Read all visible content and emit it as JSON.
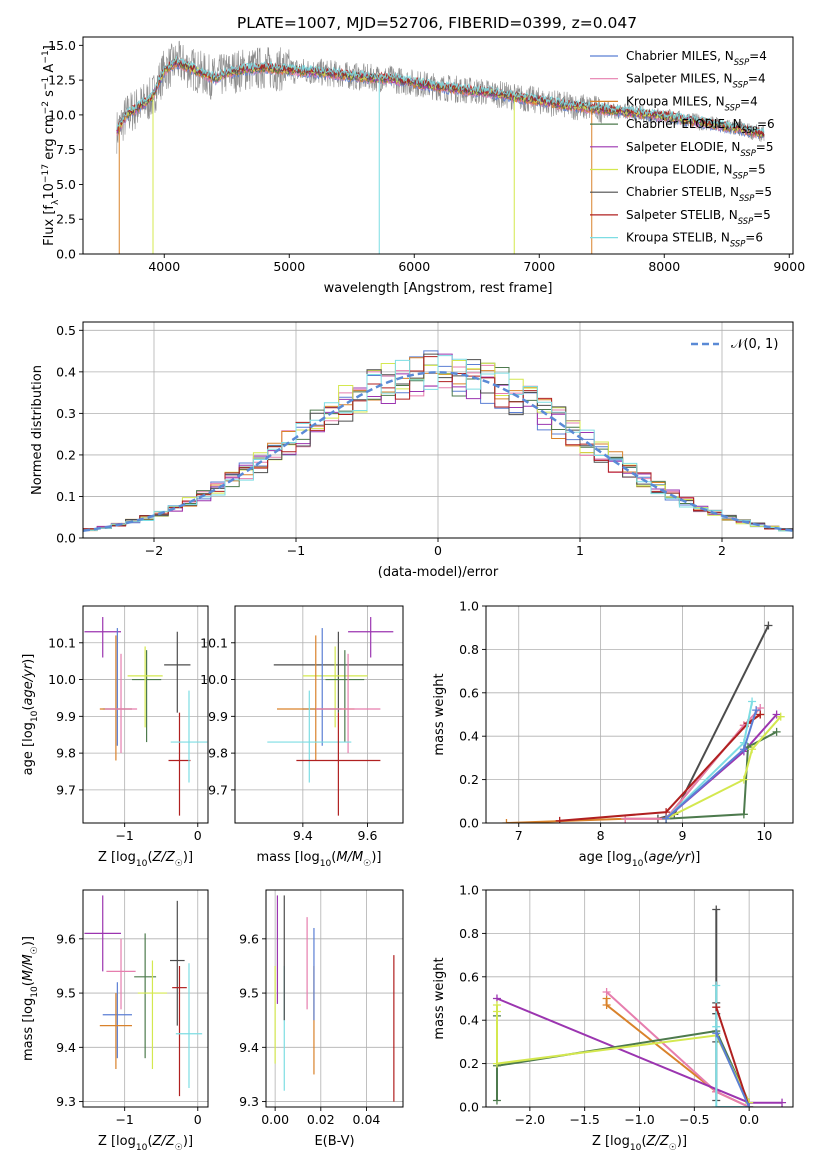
{
  "figure": {
    "title": "PLATE=1007, MJD=52706, FIBERID=0399, z=0.047"
  },
  "chart_data": [
    {
      "id": "spectrum",
      "type": "line",
      "title": "PLATE=1007, MJD=52706, FIBERID=0399, z=0.047",
      "xlabel": "wavelength [Angstrom, rest frame]",
      "ylabel": "Flux [f_λ 10^-17 erg cm^-2 s^-1 A^-1]",
      "xlim": [
        3350,
        9030
      ],
      "ylim": [
        0,
        15.6
      ],
      "xticks": [
        4000,
        5000,
        6000,
        7000,
        8000,
        9000
      ],
      "yticks": [
        0.0,
        2.5,
        5.0,
        7.5,
        10.0,
        12.5,
        15.0
      ],
      "grid": false,
      "legend_position": "top-right",
      "data": {
        "x": [
          3620,
          3700,
          3800,
          3900,
          4000,
          4100,
          4200,
          4300,
          4400,
          4500,
          4600,
          4700,
          4800,
          4900,
          5000,
          5200,
          5400,
          5600,
          5800,
          6000,
          6200,
          6400,
          6600,
          6800,
          7000,
          7200,
          7400,
          7600,
          7800,
          8000,
          8200,
          8400,
          8600,
          8800
        ],
        "y": [
          8.8,
          10.0,
          10.6,
          11.2,
          13.2,
          13.8,
          13.4,
          13.0,
          12.6,
          13.0,
          13.2,
          13.3,
          13.4,
          13.3,
          13.2,
          13.1,
          12.9,
          12.7,
          12.6,
          12.3,
          12.0,
          11.8,
          11.6,
          11.3,
          11.0,
          10.7,
          10.5,
          10.3,
          10.1,
          9.9,
          9.6,
          9.3,
          9.0,
          8.6
        ]
      },
      "series": [
        {
          "name": "Chabrier MILES, N_SSP=4",
          "color": "#5b7fd4"
        },
        {
          "name": "Salpeter MILES, N_SSP=4",
          "color": "#e67eae"
        },
        {
          "name": "Kroupa MILES, N_SSP=4",
          "color": "#d9822b"
        },
        {
          "name": "Chabrier ELODIE, N_SSP=6",
          "color": "#4d7a4d"
        },
        {
          "name": "Salpeter ELODIE, N_SSP=5",
          "color": "#9b35b0"
        },
        {
          "name": "Kroupa ELODIE, N_SSP=5",
          "color": "#d4e84f"
        },
        {
          "name": "Chabrier STELIB, N_SSP=5",
          "color": "#4d4d4d"
        },
        {
          "name": "Salpeter STELIB, N_SSP=5",
          "color": "#b02020"
        },
        {
          "name": "Kroupa STELIB, N_SSP=6",
          "color": "#7ddde3"
        }
      ],
      "data_color": "#8c8c8c"
    },
    {
      "id": "residuals",
      "type": "histogram",
      "xlabel": "(data-model)/error",
      "ylabel": "Normed distribution",
      "xlim": [
        -2.5,
        2.5
      ],
      "ylim": [
        0,
        0.52
      ],
      "xticks": [
        -2,
        -1,
        0,
        1,
        2
      ],
      "yticks": [
        0.0,
        0.1,
        0.2,
        0.3,
        0.4,
        0.5
      ],
      "grid": true,
      "legend_position": "top-right",
      "bin_width": 0.1,
      "bin_start": -2.5,
      "legend_label": "𝒩(0, 1)",
      "gaussian": {
        "mean": 0,
        "sigma": 1,
        "color": "#5a8ad6"
      }
    },
    {
      "id": "age-vs-Z",
      "type": "scatter",
      "xlabel": "Z [log10(Z/Z☉)]",
      "ylabel": "age  [log10(age/yr)]",
      "xlim": [
        -1.57,
        0.14
      ],
      "ylim": [
        9.61,
        10.2
      ],
      "xticks": [
        -1,
        0
      ],
      "yticks": [
        9.7,
        9.8,
        9.9,
        10.0,
        10.1
      ],
      "grid": true,
      "points": [
        {
          "series": "Salpeter ELODIE",
          "x": -1.3,
          "y": 10.13,
          "xerr": 0.25,
          "yerr": [
            0.07,
            0.04
          ],
          "color": "#9b35b0"
        },
        {
          "series": "Chabrier MILES",
          "x": -1.1,
          "y": 9.92,
          "xerr": 0.2,
          "yerr": [
            0.1,
            0.22
          ],
          "color": "#5b7fd4"
        },
        {
          "series": "Kroupa MILES",
          "x": -1.12,
          "y": 9.92,
          "xerr": 0.22,
          "yerr": [
            0.14,
            0.2
          ],
          "color": "#d9822b"
        },
        {
          "series": "Salpeter MILES",
          "x": -1.05,
          "y": 9.92,
          "xerr": 0.22,
          "yerr": [
            0.12,
            0.15
          ],
          "color": "#e67eae"
        },
        {
          "series": "Chabrier ELODIE",
          "x": -0.7,
          "y": 10.0,
          "xerr": 0.2,
          "yerr": [
            0.17,
            0.08
          ],
          "color": "#4d7a4d"
        },
        {
          "series": "Kroupa ELODIE",
          "x": -0.72,
          "y": 10.01,
          "xerr": 0.24,
          "yerr": [
            0.14,
            0.08
          ],
          "color": "#d4e84f"
        },
        {
          "series": "Chabrier STELIB",
          "x": -0.28,
          "y": 10.04,
          "xerr": 0.18,
          "yerr": [
            0.13,
            0.09
          ],
          "color": "#4d4d4d"
        },
        {
          "series": "Salpeter STELIB",
          "x": -0.25,
          "y": 9.78,
          "xerr": 0.15,
          "yerr": [
            0.15,
            0.13
          ],
          "color": "#b02020"
        },
        {
          "series": "Kroupa STELIB",
          "x": -0.12,
          "y": 9.83,
          "xerr": 0.25,
          "yerr": [
            0.11,
            0.14
          ],
          "color": "#7ddde3"
        }
      ]
    },
    {
      "id": "age-vs-mass",
      "type": "scatter",
      "xlabel": "mass [log10(M/M☉)]",
      "ylabel": "",
      "xlim": [
        9.19,
        9.71
      ],
      "ylim": [
        9.61,
        10.2
      ],
      "xticks": [
        9.4,
        9.6
      ],
      "yticks": [
        9.7,
        9.8,
        9.9,
        10.0,
        10.1
      ],
      "grid": true,
      "points": [
        {
          "series": "Salpeter ELODIE",
          "x": 9.61,
          "y": 10.13,
          "xerr": 0.07,
          "yerr": [
            0.07,
            0.04
          ],
          "color": "#9b35b0"
        },
        {
          "series": "Chabrier STELIB",
          "x": 9.51,
          "y": 10.04,
          "xerr": 0.2,
          "yerr": [
            0.13,
            0.09
          ],
          "color": "#4d4d4d"
        },
        {
          "series": "Kroupa ELODIE",
          "x": 9.5,
          "y": 10.01,
          "xerr": 0.1,
          "yerr": [
            0.14,
            0.08
          ],
          "color": "#d4e84f"
        },
        {
          "series": "Chabrier ELODIE",
          "x": 9.53,
          "y": 10.0,
          "xerr": 0.06,
          "yerr": [
            0.17,
            0.08
          ],
          "color": "#4d7a4d"
        },
        {
          "series": "Chabrier MILES",
          "x": 9.46,
          "y": 9.92,
          "xerr": 0.06,
          "yerr": [
            0.1,
            0.22
          ],
          "color": "#5b7fd4"
        },
        {
          "series": "Kroupa MILES",
          "x": 9.44,
          "y": 9.92,
          "xerr": 0.12,
          "yerr": [
            0.14,
            0.2
          ],
          "color": "#d9822b"
        },
        {
          "series": "Salpeter MILES",
          "x": 9.54,
          "y": 9.92,
          "xerr": 0.1,
          "yerr": [
            0.12,
            0.15
          ],
          "color": "#e67eae"
        },
        {
          "series": "Kroupa STELIB",
          "x": 9.42,
          "y": 9.83,
          "xerr": 0.13,
          "yerr": [
            0.11,
            0.14
          ],
          "color": "#7ddde3"
        },
        {
          "series": "Salpeter STELIB",
          "x": 9.51,
          "y": 9.78,
          "xerr": 0.13,
          "yerr": [
            0.15,
            0.13
          ],
          "color": "#b02020"
        }
      ]
    },
    {
      "id": "massweight-vs-age",
      "type": "line",
      "xlabel": "age  [log10(age/yr)]",
      "ylabel": "mass weight",
      "xlim": [
        6.6,
        10.35
      ],
      "ylim": [
        0,
        1.0
      ],
      "xticks": [
        7,
        8,
        9,
        10
      ],
      "yticks": [
        0.0,
        0.2,
        0.4,
        0.6,
        0.8,
        1.0
      ],
      "grid": true,
      "series": [
        {
          "name": "Chabrier STELIB",
          "color": "#4d4d4d",
          "x": [
            8.7,
            8.9,
            10.05
          ],
          "y": [
            0.02,
            0.04,
            0.91
          ]
        },
        {
          "name": "Kroupa MILES",
          "color": "#d9822b",
          "x": [
            6.85,
            8.3,
            8.8,
            9.75,
            9.95
          ],
          "y": [
            0.0,
            0.02,
            0.02,
            0.45,
            0.5
          ]
        },
        {
          "name": "Salpeter MILES",
          "color": "#e67eae",
          "x": [
            8.3,
            8.8,
            9.75,
            9.95
          ],
          "y": [
            0.02,
            0.02,
            0.45,
            0.53
          ]
        },
        {
          "name": "Salpeter STELIB",
          "color": "#b02020",
          "x": [
            7.5,
            8.8,
            9.8,
            9.95
          ],
          "y": [
            0.01,
            0.05,
            0.46,
            0.5
          ]
        },
        {
          "name": "Kroupa STELIB",
          "color": "#7ddde3",
          "x": [
            8.8,
            9.75,
            9.85
          ],
          "y": [
            0.02,
            0.37,
            0.56
          ]
        },
        {
          "name": "Salpeter ELODIE",
          "color": "#9b35b0",
          "x": [
            8.8,
            9.75,
            10.15
          ],
          "y": [
            0.02,
            0.33,
            0.5
          ]
        },
        {
          "name": "Chabrier ELODIE",
          "color": "#4d7a4d",
          "x": [
            8.8,
            9.75,
            9.8,
            10.15
          ],
          "y": [
            0.02,
            0.04,
            0.35,
            0.42
          ]
        },
        {
          "name": "Kroupa ELODIE",
          "color": "#d4e84f",
          "x": [
            8.8,
            9.75,
            9.85,
            10.2
          ],
          "y": [
            0.02,
            0.2,
            0.34,
            0.49
          ]
        },
        {
          "name": "Chabrier MILES",
          "color": "#5b7fd4",
          "x": [
            8.8,
            9.75,
            9.9
          ],
          "y": [
            0.02,
            0.34,
            0.52
          ]
        }
      ]
    },
    {
      "id": "mass-vs-Z",
      "type": "scatter",
      "xlabel": "Z [log10(Z/Z☉)]",
      "ylabel": "mass [log10(M/M☉)]",
      "xlim": [
        -1.57,
        0.14
      ],
      "ylim": [
        9.29,
        9.69
      ],
      "xticks": [
        -1,
        0
      ],
      "yticks": [
        9.3,
        9.4,
        9.5,
        9.6
      ],
      "grid": true,
      "points": [
        {
          "series": "Salpeter ELODIE",
          "x": -1.3,
          "y": 9.61,
          "xerr": 0.25,
          "yerr": [
            0.07,
            0.07
          ],
          "color": "#9b35b0"
        },
        {
          "series": "Salpeter MILES",
          "x": -1.05,
          "y": 9.54,
          "xerr": 0.2,
          "yerr": [
            0.07,
            0.06
          ],
          "color": "#e67eae"
        },
        {
          "series": "Chabrier STELIB",
          "x": -0.28,
          "y": 9.56,
          "xerr": 0.1,
          "yerr": [
            0.12,
            0.11
          ],
          "color": "#4d4d4d"
        },
        {
          "series": "Chabrier ELODIE",
          "x": -0.72,
          "y": 9.53,
          "xerr": 0.15,
          "yerr": [
            0.15,
            0.08
          ],
          "color": "#4d7a4d"
        },
        {
          "series": "Salpeter STELIB",
          "x": -0.25,
          "y": 9.51,
          "xerr": 0.1,
          "yerr": [
            0.2,
            0.04
          ],
          "color": "#b02020"
        },
        {
          "series": "Kroupa ELODIE",
          "x": -0.62,
          "y": 9.5,
          "xerr": 0.2,
          "yerr": [
            0.14,
            0.06
          ],
          "color": "#d4e84f"
        },
        {
          "series": "Chabrier MILES",
          "x": -1.1,
          "y": 9.46,
          "xerr": 0.2,
          "yerr": [
            0.08,
            0.06
          ],
          "color": "#5b7fd4"
        },
        {
          "series": "Kroupa MILES",
          "x": -1.12,
          "y": 9.44,
          "xerr": 0.22,
          "yerr": [
            0.08,
            0.06
          ],
          "color": "#d9822b"
        },
        {
          "series": "Kroupa STELIB",
          "x": -0.12,
          "y": 9.425,
          "xerr": 0.18,
          "yerr": [
            0.1,
            0.13
          ],
          "color": "#7ddde3"
        }
      ]
    },
    {
      "id": "mass-vs-EBV",
      "type": "scatter",
      "xlabel": "E(B-V)",
      "ylabel": "",
      "xlim": [
        -0.004,
        0.056
      ],
      "ylim": [
        9.29,
        9.69
      ],
      "xticks": [
        0.0,
        0.02,
        0.04
      ],
      "yticks": [
        9.3,
        9.4,
        9.5,
        9.6
      ],
      "grid": true,
      "points": [
        {
          "series": "Kroupa ELODIE",
          "x": 0.0,
          "y": 9.5,
          "yerr": [
            0.13,
            0.05
          ],
          "color": "#d4e84f"
        },
        {
          "series": "Salpeter ELODIE",
          "x": 0.001,
          "y": 9.6,
          "yerr": [
            0.12,
            0.08
          ],
          "color": "#9b35b0"
        },
        {
          "series": "Kroupa STELIB",
          "x": 0.004,
          "y": 9.43,
          "yerr": [
            0.11,
            0.12
          ],
          "color": "#7ddde3"
        },
        {
          "series": "Chabrier STELIB",
          "x": 0.004,
          "y": 9.58,
          "yerr": [
            0.13,
            0.1
          ],
          "color": "#4d4d4d"
        },
        {
          "series": "Salpeter MILES",
          "x": 0.014,
          "y": 9.55,
          "yerr": [
            0.08,
            0.09
          ],
          "color": "#e67eae"
        },
        {
          "series": "Kroupa MILES",
          "x": 0.017,
          "y": 9.44,
          "yerr": [
            0.09,
            0.11
          ],
          "color": "#d9822b"
        },
        {
          "series": "Chabrier MILES",
          "x": 0.017,
          "y": 9.52,
          "yerr": [
            0.07,
            0.1
          ],
          "color": "#5b7fd4"
        },
        {
          "series": "Salpeter STELIB",
          "x": 0.052,
          "y": 9.44,
          "yerr": [
            0.14,
            0.13
          ],
          "color": "#b02020"
        }
      ]
    },
    {
      "id": "massweight-vs-Z",
      "type": "line",
      "xlabel": "Z [log10(Z/Z☉)]",
      "ylabel": "mass weight",
      "xlim": [
        -2.4,
        0.4
      ],
      "ylim": [
        0,
        1.0
      ],
      "xticks": [
        -2.0,
        -1.5,
        -1.0,
        -0.5,
        0.0
      ],
      "yticks": [
        0.0,
        0.2,
        0.4,
        0.6,
        0.8,
        1.0
      ],
      "grid": true,
      "series": [
        {
          "name": "Chabrier STELIB",
          "color": "#4d4d4d",
          "x": [
            -0.3,
            -0.3,
            -0.3,
            -0.3,
            -0.3
          ],
          "y": [
            0.91,
            0.48,
            0.43,
            0.3,
            0.03
          ]
        },
        {
          "name": "Kroupa MILES",
          "color": "#d9822b",
          "x": [
            -1.3,
            -1.3,
            -0.3,
            0.0
          ],
          "y": [
            0.5,
            0.47,
            0.07,
            0.0
          ]
        },
        {
          "name": "Salpeter MILES",
          "color": "#e67eae",
          "x": [
            -1.3,
            -0.3,
            0.0
          ],
          "y": [
            0.53,
            0.07,
            0.0
          ]
        },
        {
          "name": "Salpeter ELODIE",
          "color": "#9b35b0",
          "x": [
            -2.3,
            0.0,
            0.3
          ],
          "y": [
            0.5,
            0.02,
            0.02
          ]
        },
        {
          "name": "Chabrier ELODIE",
          "color": "#4d7a4d",
          "x": [
            -2.3,
            -2.3,
            -2.3,
            -0.3,
            0.0
          ],
          "y": [
            0.03,
            0.42,
            0.19,
            0.35,
            0.02
          ]
        },
        {
          "name": "Kroupa ELODIE",
          "color": "#d4e84f",
          "x": [
            -2.3,
            -2.3,
            -2.3,
            -0.3,
            0.0
          ],
          "y": [
            0.47,
            0.44,
            0.2,
            0.33,
            0.02
          ]
        },
        {
          "name": "Kroupa STELIB",
          "color": "#7ddde3",
          "x": [
            -0.3,
            -0.3,
            -0.3,
            0.0
          ],
          "y": [
            0.56,
            0.37,
            0.0,
            0.0
          ]
        },
        {
          "name": "Salpeter STELIB",
          "color": "#b02020",
          "x": [
            -0.3,
            0.0
          ],
          "y": [
            0.46,
            0.0
          ]
        },
        {
          "name": "Chabrier MILES",
          "color": "#5b7fd4",
          "x": [
            -0.3,
            0.0
          ],
          "y": [
            0.34,
            0.0
          ]
        }
      ]
    }
  ]
}
